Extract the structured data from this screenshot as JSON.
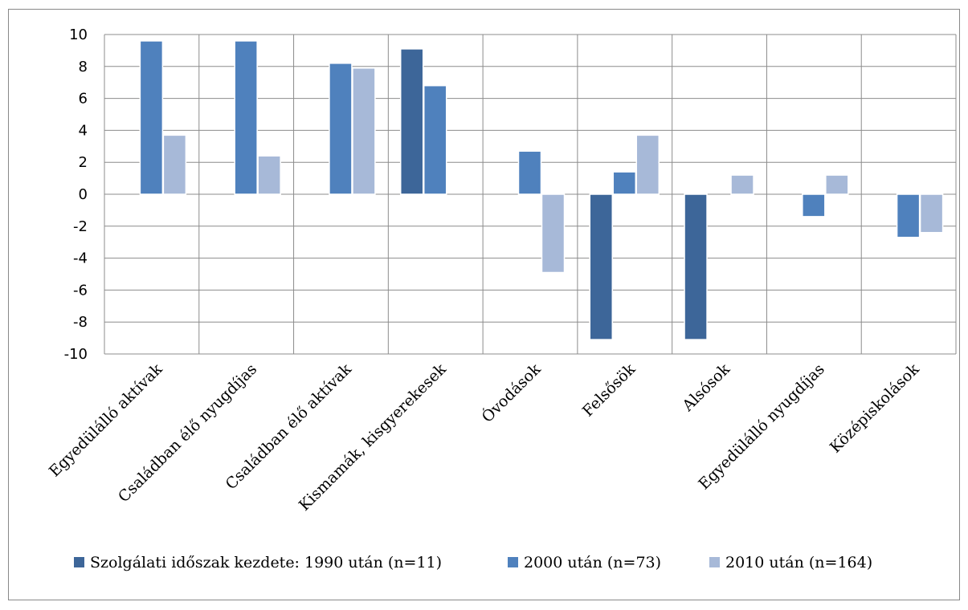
{
  "chart_data": {
    "type": "bar",
    "title": "",
    "xlabel": "",
    "ylabel": "",
    "ylim": [
      -10,
      10
    ],
    "yticks": [
      10,
      8,
      6,
      4,
      2,
      0,
      -2,
      -4,
      -6,
      -8,
      -10
    ],
    "grid": true,
    "legend_position": "bottom",
    "categories": [
      "Egyedülálló aktívak",
      "Családban élő nyugdíjas",
      "Családban élő aktívak",
      "Kismamák, kisgyerekesek",
      "Óvodások",
      "Felsősök",
      "Alsósok",
      "Egyedülálló nyugdíjas",
      "Középiskolások"
    ],
    "series": [
      {
        "name": "Szolgálati időszak kezdete: 1990 után (n=11)",
        "color": "#3d6699",
        "values": [
          0,
          0,
          0,
          9.1,
          0,
          -9.1,
          -9.1,
          0,
          0
        ]
      },
      {
        "name": "2000 után (n=73)",
        "color": "#4f81bd",
        "values": [
          9.6,
          9.6,
          8.2,
          6.8,
          2.7,
          1.4,
          0,
          -1.4,
          -2.7
        ]
      },
      {
        "name": "2010 után (n=164)",
        "color": "#a7b9d8",
        "values": [
          3.7,
          2.4,
          7.9,
          0,
          -4.9,
          3.7,
          1.2,
          1.2,
          -2.4
        ]
      }
    ]
  }
}
